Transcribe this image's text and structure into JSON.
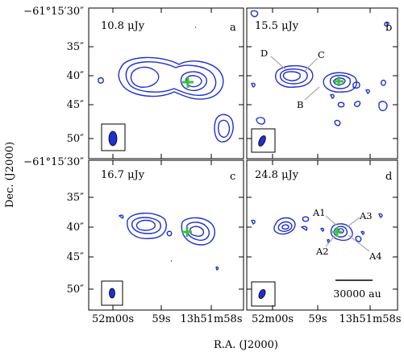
{
  "figure": {
    "y_axis_label": "Dec. (J2000)",
    "x_axis_label": "R.A. (J2000)",
    "y_ticks_top": [
      "−61°15′30″",
      "35″",
      "40″",
      "45″",
      "50″"
    ],
    "y_ticks_bottom": [
      "−61°15′30″",
      "35″",
      "40″",
      "45″",
      "50″"
    ],
    "x_ticks_left": [
      "52m00s",
      "59s",
      "13h51m58s"
    ],
    "x_ticks_right": [
      "52m00s",
      "59s",
      "13h51m58s"
    ],
    "scale_bar_label": "30000 au"
  },
  "panels": [
    {
      "id": "a",
      "label": "a",
      "flux": "10.8 μJy"
    },
    {
      "id": "b",
      "label": "b",
      "flux": "15.5 μJy",
      "components": [
        "D",
        "C",
        "B"
      ]
    },
    {
      "id": "c",
      "label": "c",
      "flux": "16.7 μJy"
    },
    {
      "id": "d",
      "label": "d",
      "flux": "24.8 μJy",
      "components": [
        "A1",
        "A2",
        "A3",
        "A4"
      ]
    }
  ],
  "colors": {
    "contour": "#1f2fd1",
    "marker": "#3fbf3f",
    "beam": "#1f2fd1"
  }
}
